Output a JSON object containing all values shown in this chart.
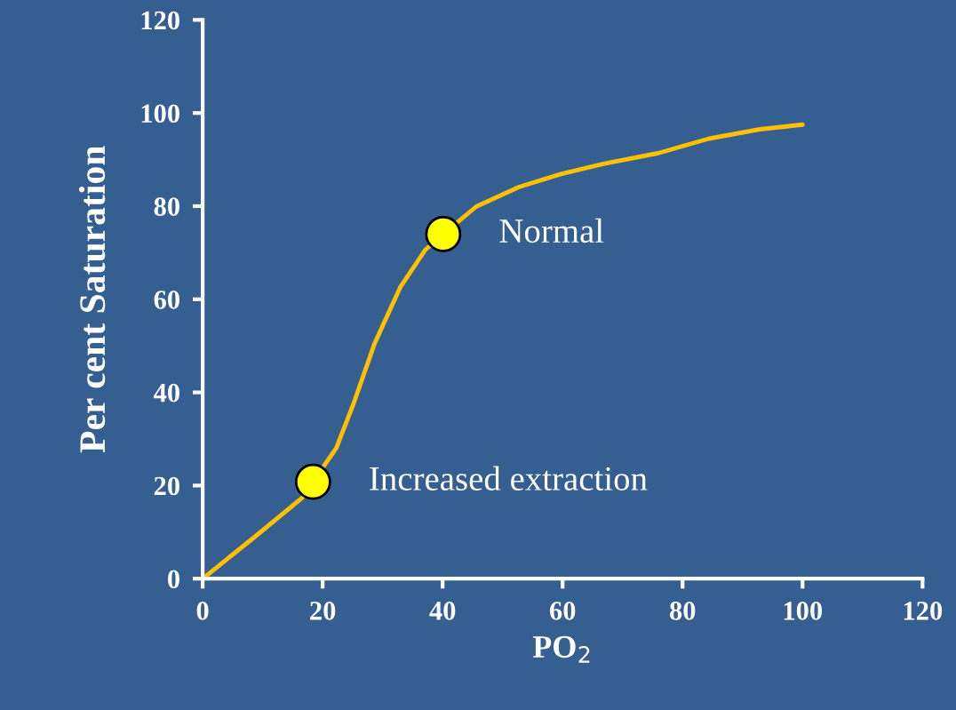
{
  "chart_data": {
    "type": "line",
    "xlabel": "PO$_{2}$",
    "ylabel": "Per cent Saturation",
    "xlim": [
      0,
      120
    ],
    "ylim": [
      0,
      120
    ],
    "xticks": [
      0,
      20,
      40,
      60,
      80,
      100,
      120
    ],
    "yticks": [
      0,
      20,
      40,
      60,
      80,
      100,
      120
    ],
    "grid": false,
    "legend": false,
    "series": [
      {
        "color": "#ffc000",
        "marker": "none",
        "line_style": "solid",
        "x": [
          0,
          8.8,
          16.6,
          18.4,
          22.3,
          25.1,
          28.6,
          32.9,
          37.1,
          40.1,
          45.6,
          52.7,
          59.7,
          66.8,
          76.0,
          84.4,
          92.9,
          100
        ],
        "values": [
          0,
          9.1,
          17.4,
          20.8,
          28.1,
          37.4,
          50.3,
          62.5,
          70.6,
          74.0,
          79.9,
          84.1,
          86.9,
          89.1,
          91.4,
          94.5,
          96.5,
          97.5
        ]
      },
      {
        "type": "scatter",
        "color": "#ffff00",
        "marker": "circle",
        "x": [
          18.4,
          40.1
        ],
        "values": [
          20.8,
          74.0
        ]
      }
    ],
    "annotations": [
      {
        "text": "Increased extraction",
        "x": 18.4,
        "y": 20.8
      },
      {
        "text": "Normal",
        "x": 40.1,
        "y": 74.0
      }
    ]
  }
}
